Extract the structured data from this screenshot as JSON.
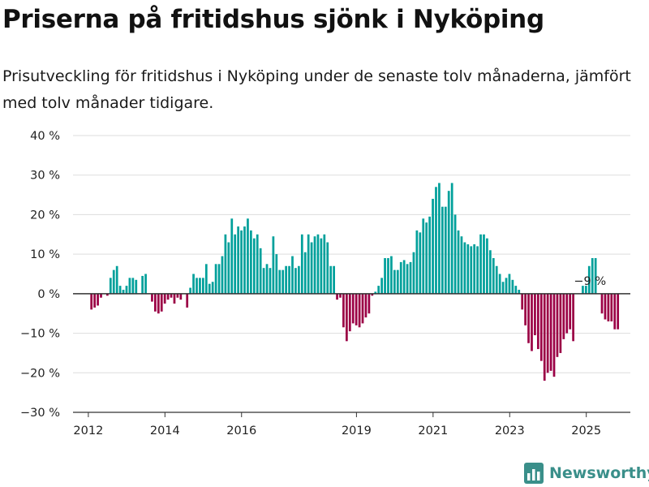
{
  "title": "Priserna på fritidshus sjönk i Nyköping",
  "subtitle": "Prisutveckling för fritidshus i Nyköping under de senaste tolv månaderna, jämfört med tolv månader tidigare.",
  "brand": {
    "name": "Newsworthy"
  },
  "colors": {
    "positive": "#00a09b",
    "negative": "#9b0045",
    "grid": "#dddddd",
    "axis": "#333333",
    "text": "#222222",
    "brand": "#3a8f8a"
  },
  "chart_data": {
    "type": "bar",
    "title": "Priserna på fritidshus sjönk i Nyköping",
    "xlabel": "",
    "ylabel": "",
    "ylim": [
      -30,
      40
    ],
    "xlim": [
      2011.6,
      2026.15
    ],
    "yticks": [
      -30,
      -20,
      -10,
      0,
      10,
      20,
      30,
      40
    ],
    "ytick_labels": [
      "−30 %",
      "−20 %",
      "−10 %",
      "0 %",
      "10 %",
      "20 %",
      "30 %",
      "40 %"
    ],
    "xticks": [
      2012,
      2014,
      2016,
      2019,
      2021,
      2023,
      2025
    ],
    "xtick_labels": [
      "2012",
      "2014",
      "2016",
      "2019",
      "2021",
      "2023",
      "2025"
    ],
    "grid": true,
    "start": 2011.5,
    "step": 0.0833,
    "annotation": {
      "text": "−9 %",
      "index": 163
    },
    "values": [
      null,
      null,
      null,
      null,
      null,
      null,
      null,
      -4,
      -3.5,
      -3,
      -1,
      null,
      -0.5,
      4,
      6,
      7,
      2,
      1,
      2,
      4,
      4,
      3.5,
      null,
      4.5,
      5,
      null,
      -2,
      -4.5,
      -5,
      -4.5,
      -2.5,
      -1.5,
      -1,
      -2.5,
      -1,
      -1.5,
      null,
      -3.5,
      1.5,
      5,
      4,
      4,
      4,
      7.5,
      2.5,
      3,
      7.5,
      7.5,
      9.5,
      15,
      13,
      19,
      15,
      17,
      16,
      17,
      19,
      16,
      14,
      15,
      11.5,
      6.5,
      7.5,
      6.5,
      14.5,
      10,
      6,
      6,
      7,
      7,
      9.5,
      6.5,
      7,
      15,
      10.5,
      15,
      13,
      14.5,
      15,
      14,
      15,
      13,
      7,
      7,
      -1.5,
      -1,
      -8.5,
      -12,
      -9.5,
      -7.5,
      -8,
      -8.5,
      -7.5,
      -6,
      -5,
      -0.5,
      0.5,
      2,
      4,
      9,
      9,
      9.5,
      6,
      6,
      8,
      8.5,
      7.5,
      8,
      10.5,
      16,
      15.5,
      19,
      18,
      19.5,
      24,
      27,
      28,
      22,
      22,
      26,
      28,
      20,
      16,
      14.5,
      13,
      12.5,
      12,
      12.5,
      12,
      15,
      15,
      14,
      11,
      9,
      7,
      5,
      3,
      4,
      5,
      3.5,
      2,
      1,
      -4,
      -8,
      -12.5,
      -14.5,
      -10.5,
      -14,
      -17,
      -22,
      -20,
      -19.5,
      -21,
      -16,
      -15,
      -11.5,
      -10,
      -9,
      -12,
      null,
      null,
      2,
      2,
      7,
      9,
      9,
      null,
      -5,
      -6.5,
      -7,
      -7,
      -9,
      -9
    ]
  }
}
